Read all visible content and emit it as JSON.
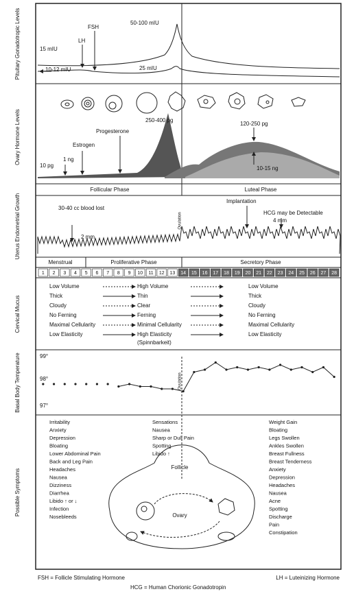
{
  "panels": {
    "pituitary": {
      "title": "Pituitary Gonadotropic Levels",
      "labels": [
        "15 mIU",
        "LH",
        "FSH",
        "50-100 mIU",
        "10-12 mIU",
        "25 mIU"
      ]
    },
    "ovary": {
      "title": "Ovary Hormone Levels",
      "labels": [
        "250-400 pg",
        "Progesterone",
        "Estrogen",
        "1 ng",
        "10 pg",
        "120-250 pg",
        "10-15 ng"
      ],
      "phases": [
        "Follicular Phase",
        "Luteal Phase"
      ]
    },
    "uterus": {
      "title": "Uterus Endometrial Growth",
      "labels": [
        "30-40 cc blood lost",
        "2 mm",
        "Ovulation",
        "Implantation",
        "HCG may be Detectable",
        "4 mm"
      ],
      "phases": [
        "Menstrual",
        "Proliferative Phase",
        "Secretory Phase"
      ]
    },
    "days": [
      1,
      2,
      3,
      4,
      5,
      6,
      7,
      8,
      9,
      10,
      11,
      12,
      13,
      14,
      15,
      16,
      17,
      18,
      19,
      20,
      21,
      22,
      23,
      24,
      25,
      26,
      27,
      28
    ],
    "mucus": {
      "title": "Cervical Mucus",
      "left": [
        "Low Volume",
        "Thick",
        "Cloudy",
        "No Ferning",
        "Maximal Cellularity",
        "Low Elasticity"
      ],
      "middle": [
        "High Volume",
        "Thin",
        "Clear",
        "Ferning",
        "Minimal Cellularity",
        "High Elasticity"
      ],
      "middle_note": "(Spinnbarkeit)",
      "right": [
        "Low Volume",
        "Thick",
        "Cloudy",
        "No Ferning",
        "Maximal Cellularity",
        "Low Elasticity"
      ]
    },
    "temperature": {
      "title": "Basal Body Temperature",
      "scale": [
        "99°",
        "98°",
        "97°"
      ],
      "ovulation": "Ovulation",
      "values": [
        97.8,
        97.8,
        97.8,
        97.8,
        97.8,
        97.8,
        97.8,
        97.7,
        97.8,
        97.7,
        97.7,
        97.6,
        97.6,
        97.5,
        98.3,
        98.4,
        98.7,
        98.4,
        98.5,
        98.4,
        98.5,
        98.4,
        98.6,
        98.4,
        98.5,
        98.3,
        98.5,
        98.1
      ]
    },
    "symptoms": {
      "title": "Possible Symptoms",
      "left": [
        "Irritability",
        "Anxiety",
        "Depression",
        "Bloating",
        "Lower Abdominal Pain",
        "Back and Leg Pain",
        "Headaches",
        "Nausea",
        "Dizziness",
        "Diarrhea",
        "Libido ↑ or ↓",
        "Infection",
        "Nosebleeds"
      ],
      "middle": [
        "Sensations",
        "Nausea",
        "Sharp or Dull Pain",
        "Spotting",
        "Libido ↑"
      ],
      "right": [
        "Weight Gain",
        "Bloating",
        "Legs Swollen",
        "Ankles Swollen",
        "Breast Fullness",
        "Breast Tenderness",
        "Anxiety",
        "Depression",
        "Headaches",
        "Nausea",
        "Acne",
        "Spotting",
        "Discharge",
        "Pain",
        "Constipation"
      ],
      "diagram": [
        "Follicle",
        "Ovary"
      ]
    }
  },
  "footer": {
    "fsh": "FSH = Follicle Stimulating Hormone",
    "lh": "LH = Luteinizing Hormone",
    "hcg": "HCG = Human Chorionic Gonadotropin"
  }
}
